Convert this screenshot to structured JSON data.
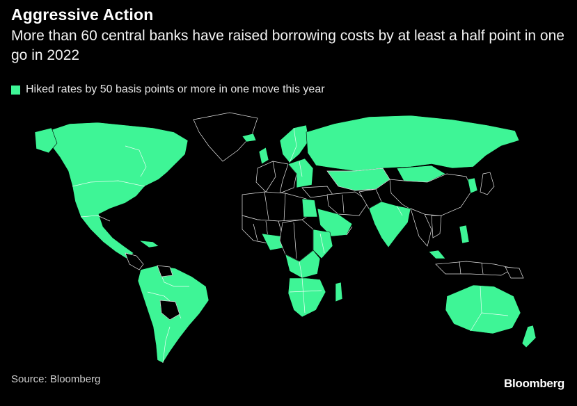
{
  "title": "Aggressive Action",
  "subtitle": "More than 60 central banks have raised borrowing costs by at least a half point in one go in 2022",
  "legend": {
    "label": "Hiked rates by 50 basis points or more in one move this year",
    "color": "#3ef596"
  },
  "colors": {
    "hiked": "#3ef596",
    "not_hiked": "#000000",
    "border": "#ffffff",
    "background": "#000000"
  },
  "source": "Source: Bloomberg",
  "brand": "Bloomberg"
}
